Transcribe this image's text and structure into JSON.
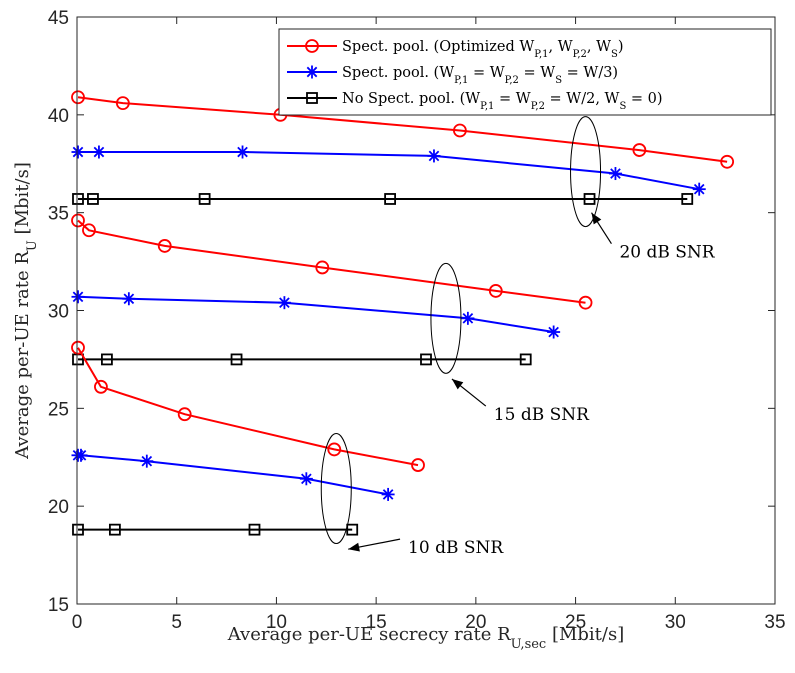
{
  "chart_data": {
    "type": "line",
    "xlabel": "Average per-UE secrecy rate R_{U,sec} [Mbit/s]",
    "ylabel": "Average per-UE rate R_U [Mbit/s]",
    "xlim": [
      0,
      35
    ],
    "ylim": [
      15,
      45
    ],
    "xticks": [
      0,
      5,
      10,
      15,
      20,
      25,
      30,
      35
    ],
    "yticks": [
      15,
      20,
      25,
      30,
      35,
      40,
      45
    ],
    "grid": false,
    "legend_position": "top-right",
    "legend": [
      {
        "key": "optimized",
        "text": "Spect. pool. (Optimized W_{P,1}, W_{P,2}, W_S)",
        "color": "#ff0000",
        "marker": "circle"
      },
      {
        "key": "equal",
        "text": "Spect. pool. (W_{P,1} = W_{P,2} = W_S = W/3)",
        "color": "#0000ff",
        "marker": "asterisk"
      },
      {
        "key": "nopool",
        "text": "No Spect. pool. (W_{P,1} = W_{P,2} = W/2, W_S = 0)",
        "color": "#000000",
        "marker": "square"
      }
    ],
    "series": [
      {
        "group": "optimized",
        "snr": "20 dB SNR",
        "x": [
          0.05,
          2.3,
          10.2,
          19.2,
          28.2,
          32.6
        ],
        "y": [
          40.9,
          40.6,
          40.0,
          39.2,
          38.2,
          37.6
        ]
      },
      {
        "group": "equal",
        "snr": "20 dB SNR",
        "x": [
          0.05,
          1.1,
          8.3,
          17.9,
          27.0,
          31.2
        ],
        "y": [
          38.1,
          38.1,
          38.1,
          37.9,
          37.0,
          36.2
        ]
      },
      {
        "group": "nopool",
        "snr": "20 dB SNR",
        "x": [
          0.05,
          0.8,
          6.4,
          15.7,
          25.7,
          30.6
        ],
        "y": [
          35.7,
          35.7,
          35.7,
          35.7,
          35.7,
          35.7
        ]
      },
      {
        "group": "optimized",
        "snr": "15 dB SNR",
        "x": [
          0.05,
          0.6,
          4.4,
          12.3,
          21.0,
          25.5
        ],
        "y": [
          34.6,
          34.1,
          33.3,
          32.2,
          31.0,
          30.4
        ]
      },
      {
        "group": "equal",
        "snr": "15 dB SNR",
        "x": [
          0.05,
          2.6,
          10.4,
          19.6,
          23.9
        ],
        "y": [
          30.7,
          30.6,
          30.4,
          29.6,
          28.9
        ]
      },
      {
        "group": "nopool",
        "snr": "15 dB SNR",
        "x": [
          0.05,
          1.5,
          8.0,
          17.5,
          22.5
        ],
        "y": [
          27.5,
          27.5,
          27.5,
          27.5,
          27.5
        ]
      },
      {
        "group": "optimized",
        "snr": "10 dB SNR",
        "x": [
          0.05,
          1.2,
          5.4,
          12.9,
          17.1
        ],
        "y": [
          28.1,
          26.1,
          24.7,
          22.9,
          22.1
        ]
      },
      {
        "group": "equal",
        "snr": "10 dB SNR",
        "x": [
          0.05,
          0.2,
          3.5,
          11.5,
          15.6
        ],
        "y": [
          22.6,
          22.6,
          22.3,
          21.4,
          20.6
        ]
      },
      {
        "group": "nopool",
        "snr": "10 dB SNR",
        "x": [
          0.05,
          1.9,
          8.9,
          13.8
        ],
        "y": [
          18.8,
          18.8,
          18.8,
          18.8
        ]
      }
    ],
    "annotations": [
      {
        "text": "20 dB SNR",
        "ellipse_center": [
          25.5,
          37.1
        ],
        "arrow_to": [
          25.8,
          35.0
        ],
        "text_at": [
          27.2,
          32.7
        ]
      },
      {
        "text": "15 dB SNR",
        "ellipse_center": [
          18.5,
          29.6
        ],
        "arrow_to": [
          18.8,
          26.5
        ],
        "text_at": [
          20.9,
          24.4
        ]
      },
      {
        "text": "10 dB SNR",
        "ellipse_center": [
          13.0,
          20.9
        ],
        "arrow_to": [
          13.6,
          17.8
        ],
        "text_at": [
          16.6,
          17.6
        ]
      }
    ]
  }
}
